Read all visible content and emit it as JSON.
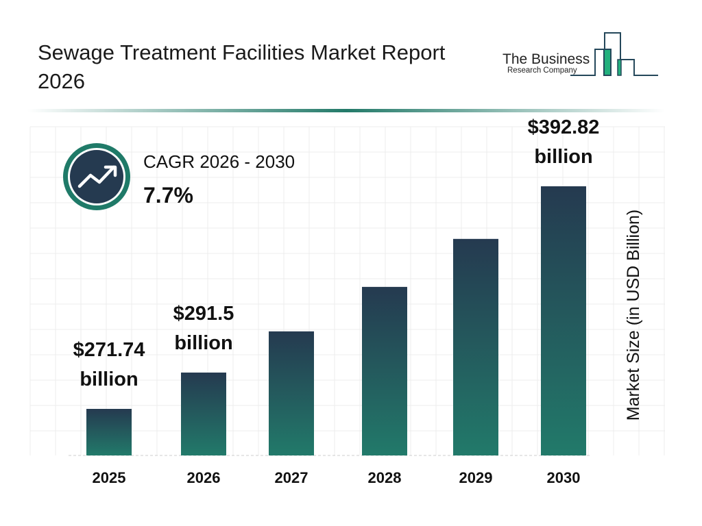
{
  "title": "Sewage Treatment Facilities Market Report 2026",
  "logo": {
    "line1": "The Business",
    "line2": "Research Company"
  },
  "cagr": {
    "label": "CAGR 2026 - 2030",
    "value": "7.7%",
    "icon": "trend-up-icon"
  },
  "colors": {
    "bar_top": "#253a50",
    "bar_bottom": "#227a6a",
    "accent": "#1f7a68",
    "icon_bg": "#253a50"
  },
  "chart_data": {
    "type": "bar",
    "categories": [
      "2025",
      "2026",
      "2027",
      "2028",
      "2029",
      "2030"
    ],
    "values": [
      271.74,
      291.5,
      313.9,
      338.1,
      364.2,
      392.82
    ],
    "data_labels": [
      {
        "index": 0,
        "line1": "$271.74",
        "line2": "billion"
      },
      {
        "index": 1,
        "line1": "$291.5",
        "line2": "billion"
      },
      {
        "index": 5,
        "line1": "$392.82",
        "line2": "billion"
      }
    ],
    "ylabel": "Market Size (in USD Billion)",
    "xlabel": "",
    "grid": true,
    "legend": "none"
  }
}
